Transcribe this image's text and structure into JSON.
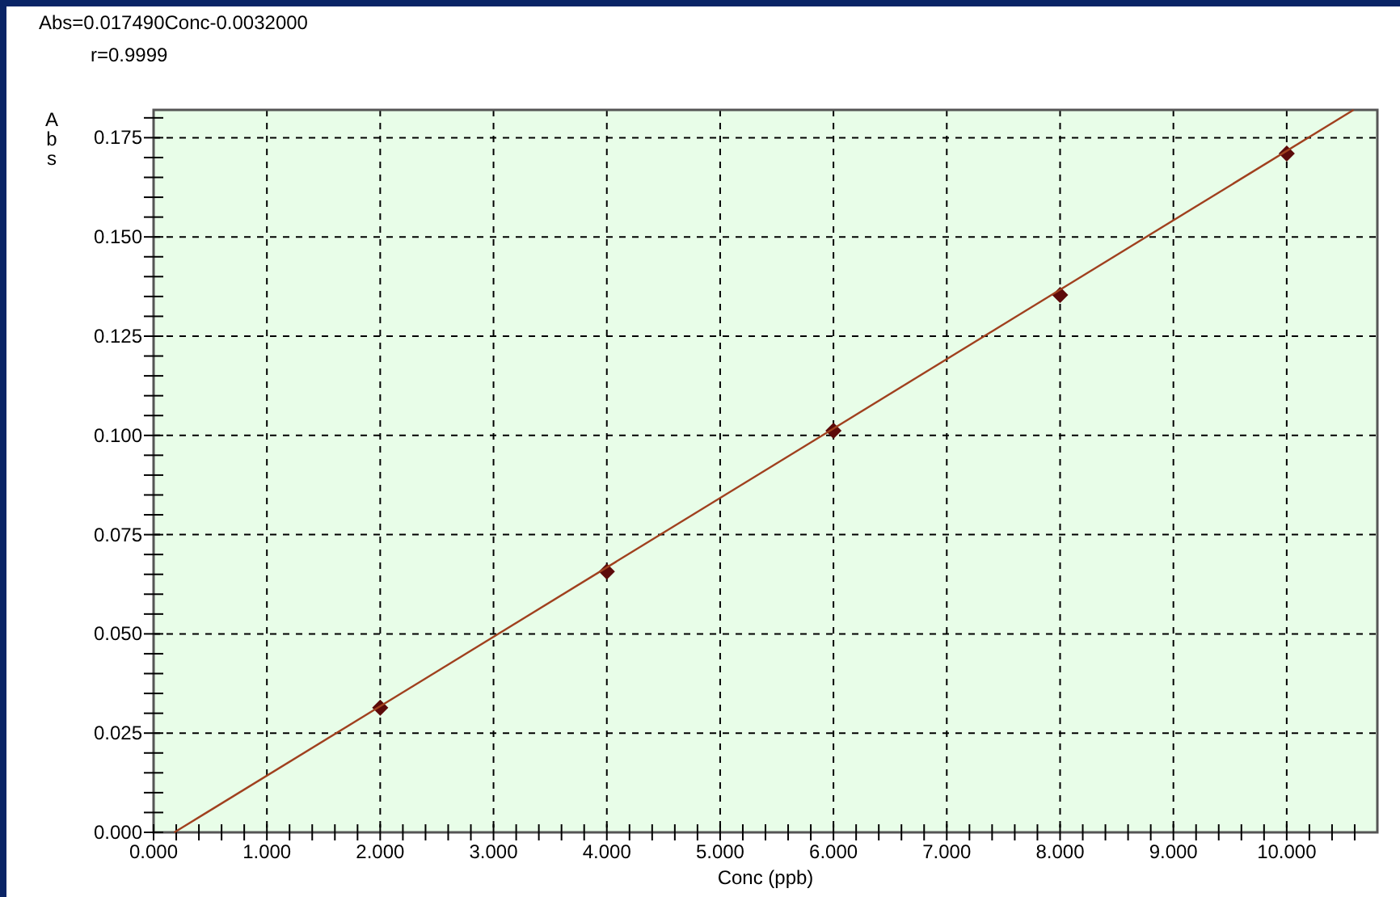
{
  "chart_data": {
    "type": "scatter",
    "xlabel": "Conc (ppb)",
    "ylabel": "Abs",
    "annotations": [
      "Abs=0.017490Conc-0.0032000",
      "r=0.9999"
    ],
    "x": [
      2,
      4,
      6,
      8,
      10
    ],
    "series": [
      {
        "color": "#5c0a0a",
        "marker": "diamond",
        "values": [
          0.0314,
          0.0657,
          0.1012,
          0.1354,
          0.171
        ]
      },
      {
        "type": "line",
        "color": "#a0401e",
        "marker": "none",
        "x": [
          0.183,
          10.59
        ],
        "values": [
          0,
          0.182
        ]
      }
    ],
    "xlim": [
      0,
      10.8
    ],
    "ylim": [
      0,
      0.182
    ],
    "xticks": [
      {
        "value": 0,
        "label": "0.000"
      },
      {
        "value": 0.2,
        "label": null
      },
      {
        "value": 0.4,
        "label": null
      },
      {
        "value": 0.6,
        "label": null
      },
      {
        "value": 0.8,
        "label": null
      },
      {
        "value": 1,
        "label": "1.000"
      },
      {
        "value": 1.2,
        "label": null
      },
      {
        "value": 1.4,
        "label": null
      },
      {
        "value": 1.6,
        "label": null
      },
      {
        "value": 1.8,
        "label": null
      },
      {
        "value": 2,
        "label": "2.000"
      },
      {
        "value": 2.2,
        "label": null
      },
      {
        "value": 2.4,
        "label": null
      },
      {
        "value": 2.6,
        "label": null
      },
      {
        "value": 2.8,
        "label": null
      },
      {
        "value": 3,
        "label": "3.000"
      },
      {
        "value": 3.2,
        "label": null
      },
      {
        "value": 3.4,
        "label": null
      },
      {
        "value": 3.6,
        "label": null
      },
      {
        "value": 3.8,
        "label": null
      },
      {
        "value": 4,
        "label": "4.000"
      },
      {
        "value": 4.2,
        "label": null
      },
      {
        "value": 4.4,
        "label": null
      },
      {
        "value": 4.6,
        "label": null
      },
      {
        "value": 4.8,
        "label": null
      },
      {
        "value": 5,
        "label": "5.000"
      },
      {
        "value": 5.2,
        "label": null
      },
      {
        "value": 5.4,
        "label": null
      },
      {
        "value": 5.6,
        "label": null
      },
      {
        "value": 5.8,
        "label": null
      },
      {
        "value": 6,
        "label": "6.000"
      },
      {
        "value": 6.2,
        "label": null
      },
      {
        "value": 6.4,
        "label": null
      },
      {
        "value": 6.6,
        "label": null
      },
      {
        "value": 6.8,
        "label": null
      },
      {
        "value": 7,
        "label": "7.000"
      },
      {
        "value": 7.2,
        "label": null
      },
      {
        "value": 7.4,
        "label": null
      },
      {
        "value": 7.6,
        "label": null
      },
      {
        "value": 7.8,
        "label": null
      },
      {
        "value": 8,
        "label": "8.000"
      },
      {
        "value": 8.2,
        "label": null
      },
      {
        "value": 8.4,
        "label": null
      },
      {
        "value": 8.6,
        "label": null
      },
      {
        "value": 8.8,
        "label": null
      },
      {
        "value": 9,
        "label": "9.000"
      },
      {
        "value": 9.2,
        "label": null
      },
      {
        "value": 9.4,
        "label": null
      },
      {
        "value": 9.6,
        "label": null
      },
      {
        "value": 9.8,
        "label": null
      },
      {
        "value": 10,
        "label": "10.000"
      },
      {
        "value": 10.2,
        "label": null
      },
      {
        "value": 10.4,
        "label": null
      },
      {
        "value": 10.6,
        "label": null
      }
    ],
    "yticks": [
      {
        "value": 0,
        "label": "0.000"
      },
      {
        "value": 0.005,
        "label": null
      },
      {
        "value": 0.01,
        "label": null
      },
      {
        "value": 0.015,
        "label": null
      },
      {
        "value": 0.02,
        "label": null
      },
      {
        "value": 0.025,
        "label": "0.025"
      },
      {
        "value": 0.03,
        "label": null
      },
      {
        "value": 0.035,
        "label": null
      },
      {
        "value": 0.04,
        "label": null
      },
      {
        "value": 0.045,
        "label": null
      },
      {
        "value": 0.05,
        "label": "0.050"
      },
      {
        "value": 0.055,
        "label": null
      },
      {
        "value": 0.06,
        "label": null
      },
      {
        "value": 0.065,
        "label": null
      },
      {
        "value": 0.07,
        "label": null
      },
      {
        "value": 0.075,
        "label": "0.075"
      },
      {
        "value": 0.08,
        "label": null
      },
      {
        "value": 0.085,
        "label": null
      },
      {
        "value": 0.09,
        "label": null
      },
      {
        "value": 0.095,
        "label": null
      },
      {
        "value": 0.1,
        "label": "0.100"
      },
      {
        "value": 0.105,
        "label": null
      },
      {
        "value": 0.11,
        "label": null
      },
      {
        "value": 0.115,
        "label": null
      },
      {
        "value": 0.12,
        "label": null
      },
      {
        "value": 0.125,
        "label": "0.125"
      },
      {
        "value": 0.13,
        "label": null
      },
      {
        "value": 0.135,
        "label": null
      },
      {
        "value": 0.14,
        "label": null
      },
      {
        "value": 0.145,
        "label": null
      },
      {
        "value": 0.15,
        "label": "0.150"
      },
      {
        "value": 0.155,
        "label": null
      },
      {
        "value": 0.16,
        "label": null
      },
      {
        "value": 0.165,
        "label": null
      },
      {
        "value": 0.17,
        "label": null
      },
      {
        "value": 0.175,
        "label": "0.175"
      },
      {
        "value": 0.18,
        "label": null
      }
    ],
    "grid": true,
    "line_style": "solid"
  }
}
